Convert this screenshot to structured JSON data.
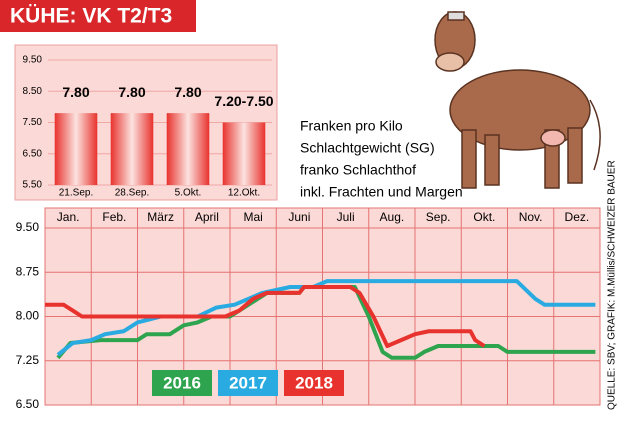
{
  "title": "KÜHE: VK T2/T3",
  "note": [
    "Franken pro Kilo",
    "Schlachtgewicht (SG)",
    "franko Schlachthof",
    "inkl. Frachten und Margen"
  ],
  "source": "QUELLE: SBV; GRAFIK: M.Müllis/SCHWEIZER BAUER",
  "chart_data": [
    {
      "type": "bar",
      "categories": [
        "21.Sep.",
        "28.Sep.",
        "5.Okt.",
        "12.Okt."
      ],
      "values": [
        7.8,
        7.8,
        7.8,
        7.5
      ],
      "value_labels": [
        "7.80",
        "7.80",
        "7.80",
        "7.20-7.50"
      ],
      "color": "#e8322d",
      "ylim": [
        5.5,
        9.5
      ],
      "yticks": [
        {
          "value": 5.5,
          "label": "5.50"
        },
        {
          "value": 6.5,
          "label": "6.50"
        },
        {
          "value": 7.5,
          "label": "7.50"
        },
        {
          "value": 8.5,
          "label": "8.50"
        },
        {
          "value": 9.5,
          "label": "9.50"
        }
      ],
      "grid": true
    },
    {
      "type": "line",
      "categories": [
        "Jan.",
        "Feb.",
        "März",
        "April",
        "Mai",
        "Juni",
        "Juli",
        "Aug.",
        "Sep.",
        "Okt.",
        "Nov.",
        "Dez."
      ],
      "xlim": [
        0,
        12
      ],
      "ylim": [
        6.5,
        9.5
      ],
      "yticks": [
        {
          "value": 6.5,
          "label": "6.50"
        },
        {
          "value": 7.25,
          "label": "7.25"
        },
        {
          "value": 8,
          "label": "8.00"
        },
        {
          "value": 8.75,
          "label": "8.75"
        },
        {
          "value": 9.5,
          "label": "9.50"
        }
      ],
      "grid": true,
      "series": [
        {
          "name": "2016",
          "color": "#2ea44f",
          "x": [
            0.28,
            0.55,
            1.2,
            2.0,
            2.2,
            2.7,
            3.0,
            3.3,
            3.6,
            4.0,
            4.3,
            4.6,
            4.8,
            5.5,
            5.6,
            6.7,
            7.0,
            7.3,
            7.5,
            8.0,
            8.2,
            8.5,
            9.8,
            10.0,
            11.9
          ],
          "values": [
            7.3,
            7.55,
            7.6,
            7.6,
            7.7,
            7.7,
            7.85,
            7.9,
            8.0,
            8.0,
            8.15,
            8.3,
            8.4,
            8.4,
            8.5,
            8.5,
            8.0,
            7.4,
            7.3,
            7.3,
            7.4,
            7.5,
            7.5,
            7.4,
            7.4
          ]
        },
        {
          "name": "2017",
          "color": "#29abe2",
          "x": [
            0.28,
            0.6,
            1.0,
            1.3,
            1.7,
            2.0,
            2.5,
            3.3,
            3.7,
            4.1,
            4.4,
            4.7,
            5.3,
            5.8,
            6.1,
            10.2,
            10.6,
            10.8,
            11.9
          ],
          "values": [
            7.35,
            7.55,
            7.6,
            7.7,
            7.75,
            7.9,
            8.0,
            8.0,
            8.15,
            8.2,
            8.3,
            8.4,
            8.5,
            8.5,
            8.6,
            8.6,
            8.3,
            8.2,
            8.2
          ]
        },
        {
          "name": "2018",
          "color": "#e8322d",
          "x": [
            0.0,
            0.4,
            0.6,
            0.8,
            2.0,
            3.5,
            3.9,
            4.2,
            4.5,
            4.8,
            5.5,
            5.6,
            6.6,
            6.8,
            7.1,
            7.4,
            7.7,
            8.0,
            8.3,
            9.2,
            9.3,
            9.5
          ],
          "values": [
            8.2,
            8.2,
            8.1,
            8.0,
            8.0,
            8.0,
            8.0,
            8.1,
            8.3,
            8.4,
            8.4,
            8.5,
            8.5,
            8.4,
            8.0,
            7.5,
            7.6,
            7.7,
            7.75,
            7.75,
            7.6,
            7.5
          ]
        }
      ]
    }
  ]
}
